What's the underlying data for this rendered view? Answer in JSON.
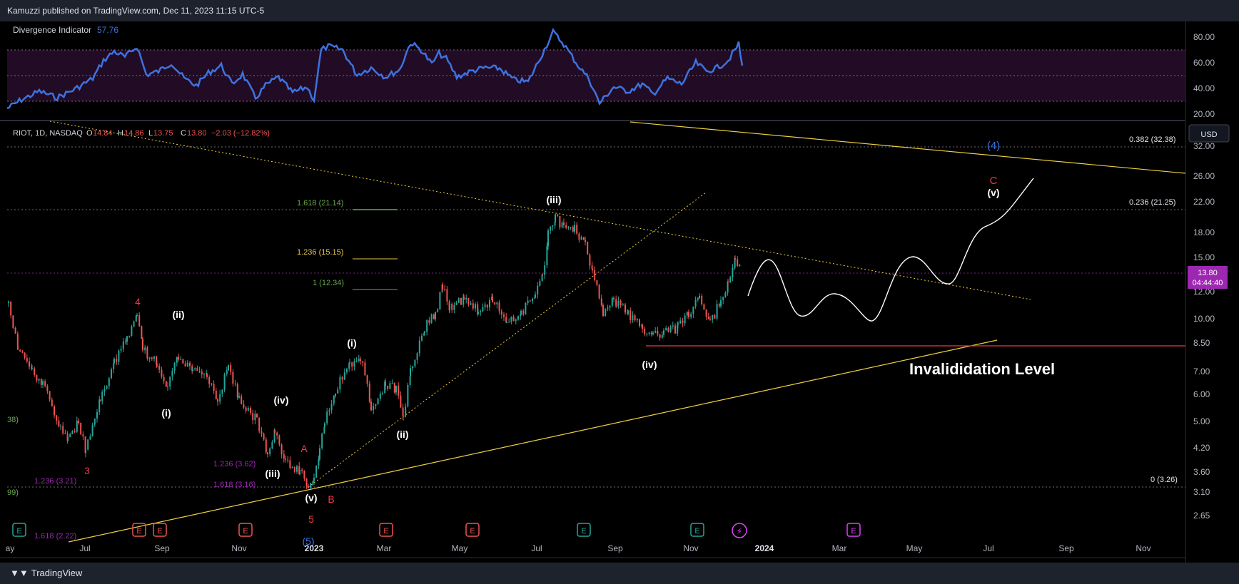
{
  "header": {
    "publisher": "Kamuzzi published on TradingView.com, Dec 11, 2023 11:15 UTC-5"
  },
  "footer": {
    "brand": "TradingView"
  },
  "indicator": {
    "name": "Divergence Indicator",
    "value": "57.76",
    "y_ticks": [
      "80.00",
      "60.00",
      "40.00",
      "20.00"
    ]
  },
  "legend": {
    "symbol": "RIOT, 1D, NASDAQ",
    "o_label": "O",
    "o_value": "14.84",
    "h_label": "H",
    "h_value": "14.86",
    "l_label": "L",
    "l_value": "13.75",
    "c_label": "C",
    "c_value": "13.80",
    "change": "−2.03 (−12.82%)"
  },
  "price_axis": {
    "currency": "USD",
    "ticks": [
      "32.00",
      "26.00",
      "22.00",
      "18.00",
      "15.00",
      "12.00",
      "10.00",
      "8.50",
      "7.00",
      "6.00",
      "5.00",
      "4.20",
      "3.60",
      "3.10",
      "2.65"
    ],
    "current_price": "13.80",
    "countdown": "04:44:40"
  },
  "time_axis": {
    "ticks": [
      "ay",
      "Jul",
      "Sep",
      "Nov",
      "2023",
      "Mar",
      "May",
      "Jul",
      "Sep",
      "Nov",
      "2024",
      "Mar",
      "May",
      "Jul",
      "Sep",
      "Nov"
    ]
  },
  "fib_levels": {
    "f0382": "0.382 (32.38)",
    "f0236": "0.236 (21.25)",
    "f0": "0 (3.26)",
    "f1618": "1.618 (21.14)",
    "f1236": "1.236 (15.15)",
    "f1": "1 (12.34)",
    "p1236a": "1.236 (3.62)",
    "p1618a": "1.618 (3.16)",
    "p1236b": "1.236 (3.21)",
    "p1618b": "1.618 (2.22)",
    "edge1": "38)",
    "edge2": "99)"
  },
  "waves": {
    "w3": "3",
    "w4": "4",
    "w5": "5",
    "A": "A",
    "B": "B",
    "C": "C",
    "sub_i": "(i)",
    "sub_ii": "(ii)",
    "sub_iv": "(iv)",
    "sub_iii": "(iii)",
    "sub_v": "(v)",
    "sub_i2": "(i)",
    "sub_ii2": "(ii)",
    "sub_iii2": "(iii)",
    "sub_iv2": "(iv)",
    "sub_v2": "(v)",
    "deg4": "(4)",
    "deg5": "(5)"
  },
  "annotation": {
    "invalidation": "Invalididation Level"
  },
  "events": [
    "E",
    "E",
    "E",
    "E",
    "E",
    "E",
    "E",
    "E",
    "E"
  ],
  "colors": {
    "up": "#26a69a",
    "down": "#ef5350",
    "rsi": "#3d72e0",
    "fib": "#b2b5be",
    "trend": "#f0d040",
    "invalid": "#f23645",
    "purple": "#9c27b0",
    "green": "#6aa84f",
    "gold": "#e6c84c"
  }
}
